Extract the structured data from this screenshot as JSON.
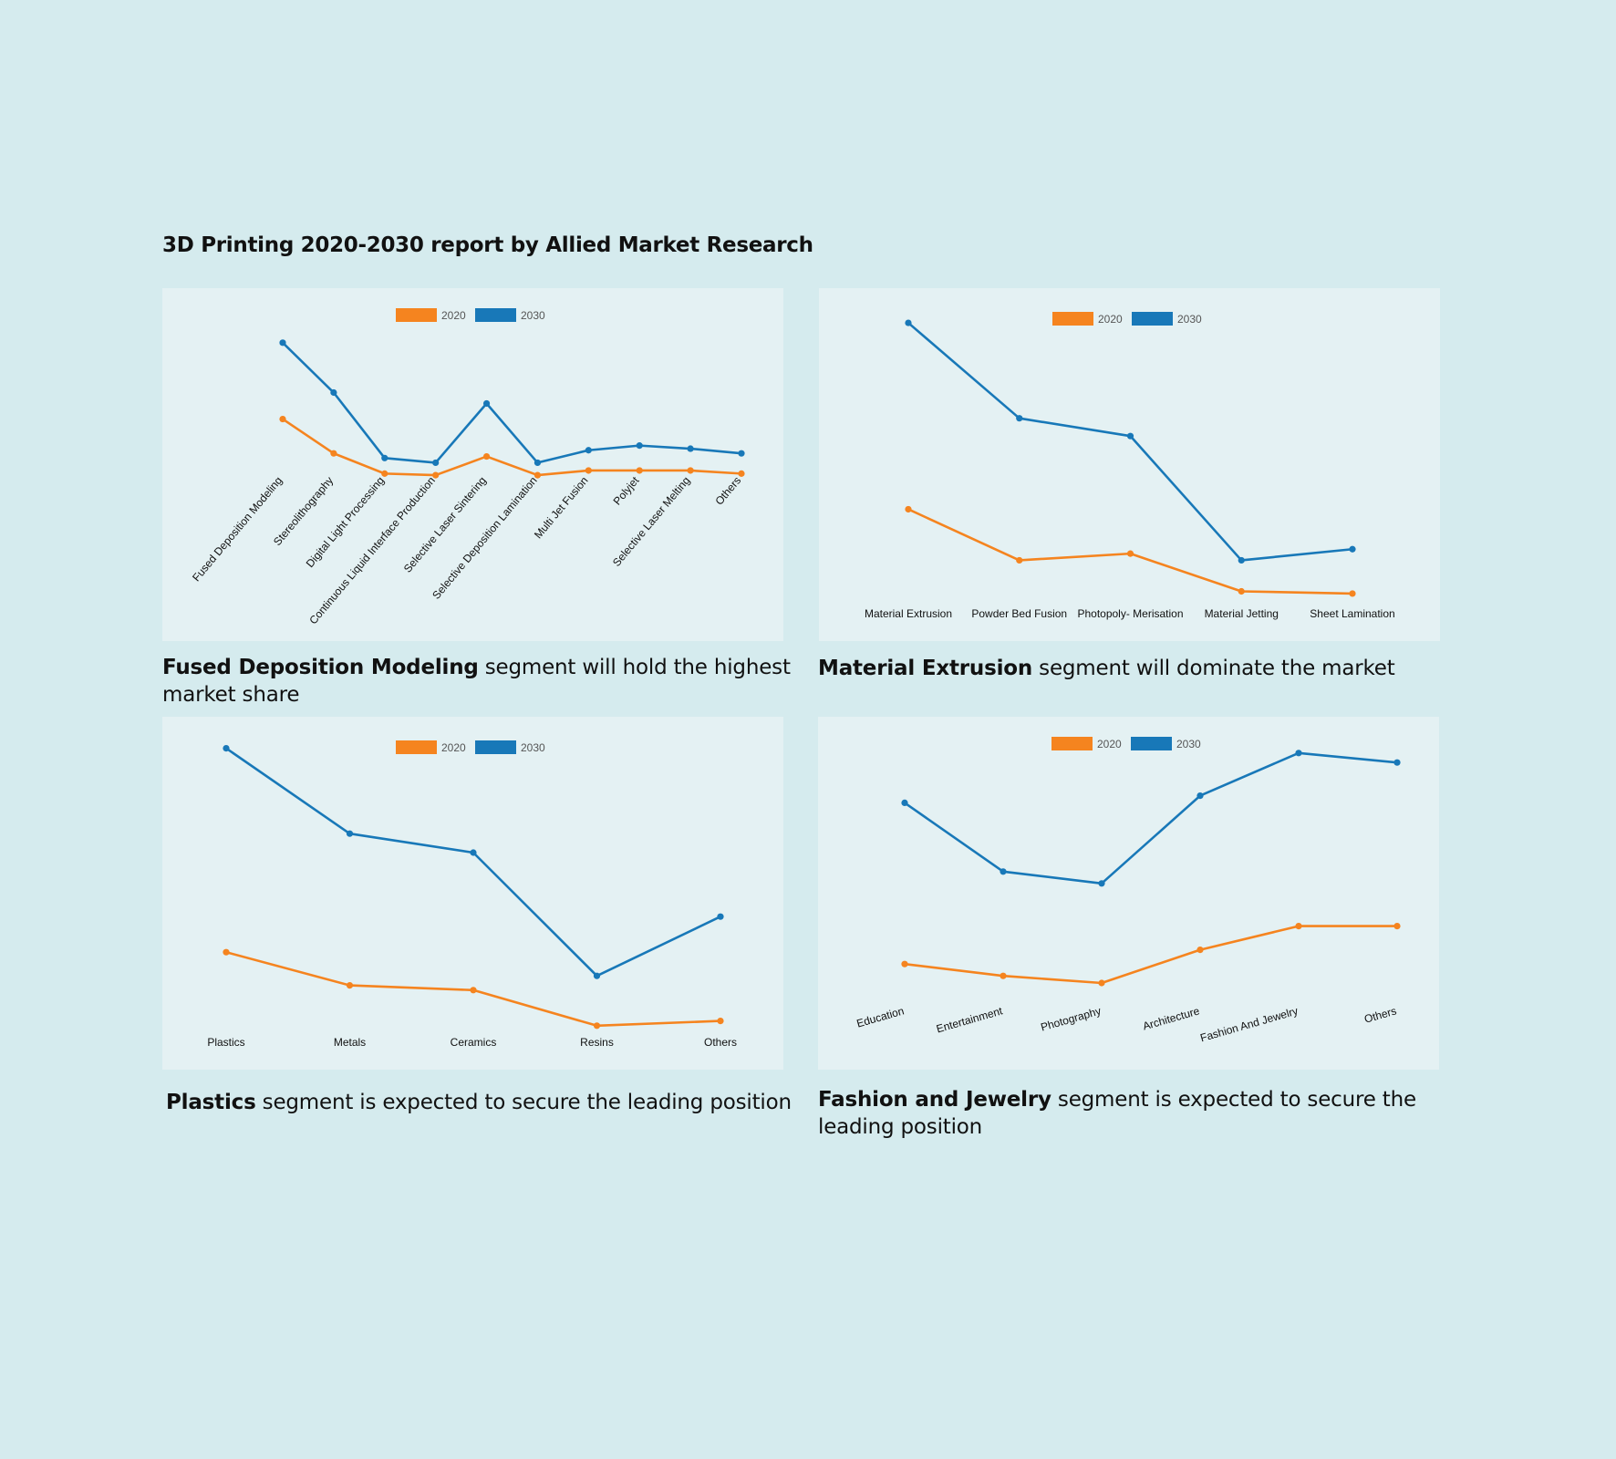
{
  "page": {
    "title": "3D Printing 2020-2030 report by Allied Market Research"
  },
  "colors": {
    "s2020": "#f5841f",
    "s2030": "#1878b8"
  },
  "captions": [
    {
      "bold": "Fused Deposition Modeling",
      "rest": " segment will hold the highest market share"
    },
    {
      "bold": "Material Extrusion",
      "rest": " segment will dominate the market"
    },
    {
      "bold": "Plastics",
      "rest": " segment is expected to secure the leading position"
    },
    {
      "bold": "Fashion and Jewelry",
      "rest": " segment is expected to secure the leading position"
    }
  ],
  "chart_data": [
    {
      "type": "line",
      "categories": [
        "Fused Deposition Modeling",
        "Stereolithography",
        "Digital Light Processing",
        "Continuous Liquid Interface Production",
        "Selective Laser Sintering",
        "Selective Deposition Lamination",
        "Multi Jet Fusion",
        "Polyjet",
        "Selective Laser Melting",
        "Others"
      ],
      "series": [
        {
          "name": "2020",
          "values": [
            5.6,
            3.4,
            2.1,
            2.0,
            3.2,
            2.0,
            2.3,
            2.3,
            2.3,
            2.1
          ]
        },
        {
          "name": "2030",
          "values": [
            10.5,
            7.3,
            3.1,
            2.8,
            6.6,
            2.8,
            3.6,
            3.9,
            3.7,
            3.4
          ]
        }
      ],
      "ylim": [
        -8,
        14
      ],
      "legend": "top-center",
      "rotated_labels": true
    },
    {
      "type": "line",
      "categories": [
        "Material Extrusion",
        "Powder Bed Fusion",
        "Photopoly- Merisation",
        "Material Jetting",
        "Sheet Lamination"
      ],
      "series": [
        {
          "name": "2020",
          "values": [
            4.2,
            1.9,
            2.2,
            0.5,
            0.4
          ]
        },
        {
          "name": "2030",
          "values": [
            12.6,
            8.3,
            7.5,
            1.9,
            2.4
          ]
        }
      ],
      "ylim": [
        -1,
        14
      ],
      "legend": "top-center",
      "rotated_labels": false
    },
    {
      "type": "line",
      "categories": [
        "Plastics",
        "Metals",
        "Ceramics",
        "Resins",
        "Others"
      ],
      "series": [
        {
          "name": "2020",
          "values": [
            3.3,
            1.9,
            1.7,
            0.2,
            0.4
          ]
        },
        {
          "name": "2030",
          "values": [
            11.9,
            8.3,
            7.5,
            2.3,
            4.8
          ]
        }
      ],
      "ylim": [
        -1.5,
        13
      ],
      "legend": "top-center",
      "rotated_labels": false
    },
    {
      "type": "line",
      "categories": [
        "Education",
        "Entertainment",
        "Photography",
        "Architecture",
        "Fashion And Jewelry",
        "Others"
      ],
      "series": [
        {
          "name": "2020",
          "values": [
            2.8,
            2.3,
            2.0,
            3.4,
            4.4,
            4.4
          ]
        },
        {
          "name": "2030",
          "values": [
            9.6,
            6.7,
            6.2,
            9.9,
            11.7,
            11.3
          ]
        }
      ],
      "ylim": [
        -1.5,
        13
      ],
      "legend": "top-center",
      "rotated_labels": true
    }
  ]
}
